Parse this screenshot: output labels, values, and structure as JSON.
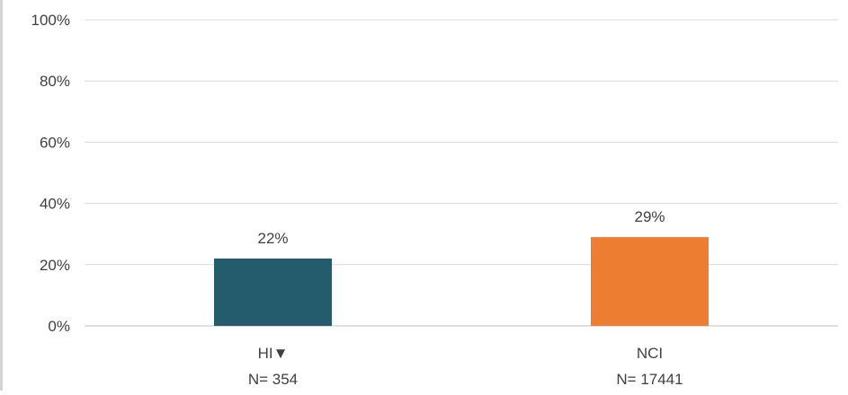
{
  "chart_data": {
    "type": "bar",
    "categories": [
      "HI▼",
      "NCI"
    ],
    "sample_sizes": [
      "N= 354",
      "N= 17441"
    ],
    "values": [
      22,
      29
    ],
    "data_labels": [
      "22%",
      "29%"
    ],
    "colors": [
      "#245c6e",
      "#ed7d31"
    ],
    "ylim": [
      0,
      100
    ],
    "yticks": [
      "0%",
      "20%",
      "40%",
      "60%",
      "80%",
      "100%"
    ],
    "ytick_values": [
      0,
      20,
      40,
      60,
      80,
      100
    ],
    "gridlines": true,
    "title": "",
    "xlabel": "",
    "ylabel": ""
  }
}
